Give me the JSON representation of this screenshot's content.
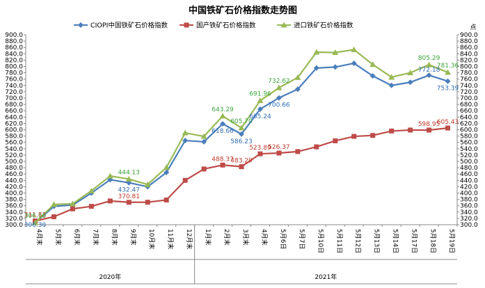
{
  "chart_data": {
    "type": "line",
    "title": "中国铁矿石价格指数走势图",
    "y_unit_right": "点",
    "ylim": [
      300,
      900
    ],
    "ytick_step": 20,
    "grid": false,
    "legend_position": "top",
    "categories": [
      "4月末",
      "5月末",
      "6月末",
      "7月末",
      "8月末",
      "9月末",
      "10月末",
      "11月末",
      "12月末",
      "1月末",
      "2月末",
      "3月末",
      "4月末",
      "5月6日",
      "5月7日",
      "5月10日",
      "5月11日",
      "5月12日",
      "5月13日",
      "5月14日",
      "5月17日",
      "5月18日",
      "5月19日"
    ],
    "year_groups": [
      {
        "label": "2020年",
        "start": 0,
        "end": 8
      },
      {
        "label": "2021年",
        "start": 9,
        "end": 22
      }
    ],
    "series": [
      {
        "name": "CIOPI中国铁矿石价格指数",
        "color": "#4a7ebb",
        "marker": "diamond",
        "values": [
          306.3,
          358,
          362,
          400,
          442,
          432.47,
          420,
          465,
          566,
          562,
          618.66,
          586.23,
          665.24,
          700.66,
          728,
          795,
          798,
          810,
          770,
          740,
          750,
          772.18,
          753.39
        ],
        "labels": [
          "306.30",
          null,
          null,
          null,
          null,
          "432.47",
          null,
          null,
          null,
          null,
          "618.66",
          "586.23",
          "665.24",
          "700.66",
          null,
          null,
          null,
          null,
          null,
          null,
          null,
          "772.18",
          "753.39"
        ]
      },
      {
        "name": "国产铁矿石价格指数",
        "color": "#be4b48",
        "marker": "square",
        "values": [
          311.83,
          325,
          350,
          358,
          375,
          370.81,
          371,
          378,
          440,
          476,
          488.37,
          483.29,
          523.89,
          526.37,
          531,
          546,
          565,
          579,
          582,
          596,
          599,
          598.95,
          605.43
        ],
        "labels": [
          "311.83",
          null,
          null,
          null,
          null,
          "370.81",
          null,
          null,
          null,
          null,
          "488.37",
          "483.29",
          "523.89",
          "526.37",
          null,
          null,
          null,
          null,
          null,
          null,
          null,
          "598.95",
          "605.43"
        ]
      },
      {
        "name": "进口铁矿石价格指数",
        "color": "#98b954",
        "marker": "triangle",
        "values": [
          306.1,
          364,
          366,
          407,
          454,
          444.13,
          427,
          481,
          590,
          579,
          643.29,
          605.7,
          691.96,
          732.62,
          765,
          845,
          844,
          853,
          806,
          766,
          780,
          805.29,
          781.36
        ],
        "labels": [
          "306.10",
          null,
          null,
          null,
          null,
          "444.13",
          null,
          null,
          null,
          null,
          "643.29",
          "605.70",
          "691.96",
          "732.62",
          null,
          null,
          null,
          null,
          null,
          null,
          null,
          "805.29",
          "781.36"
        ]
      }
    ]
  }
}
